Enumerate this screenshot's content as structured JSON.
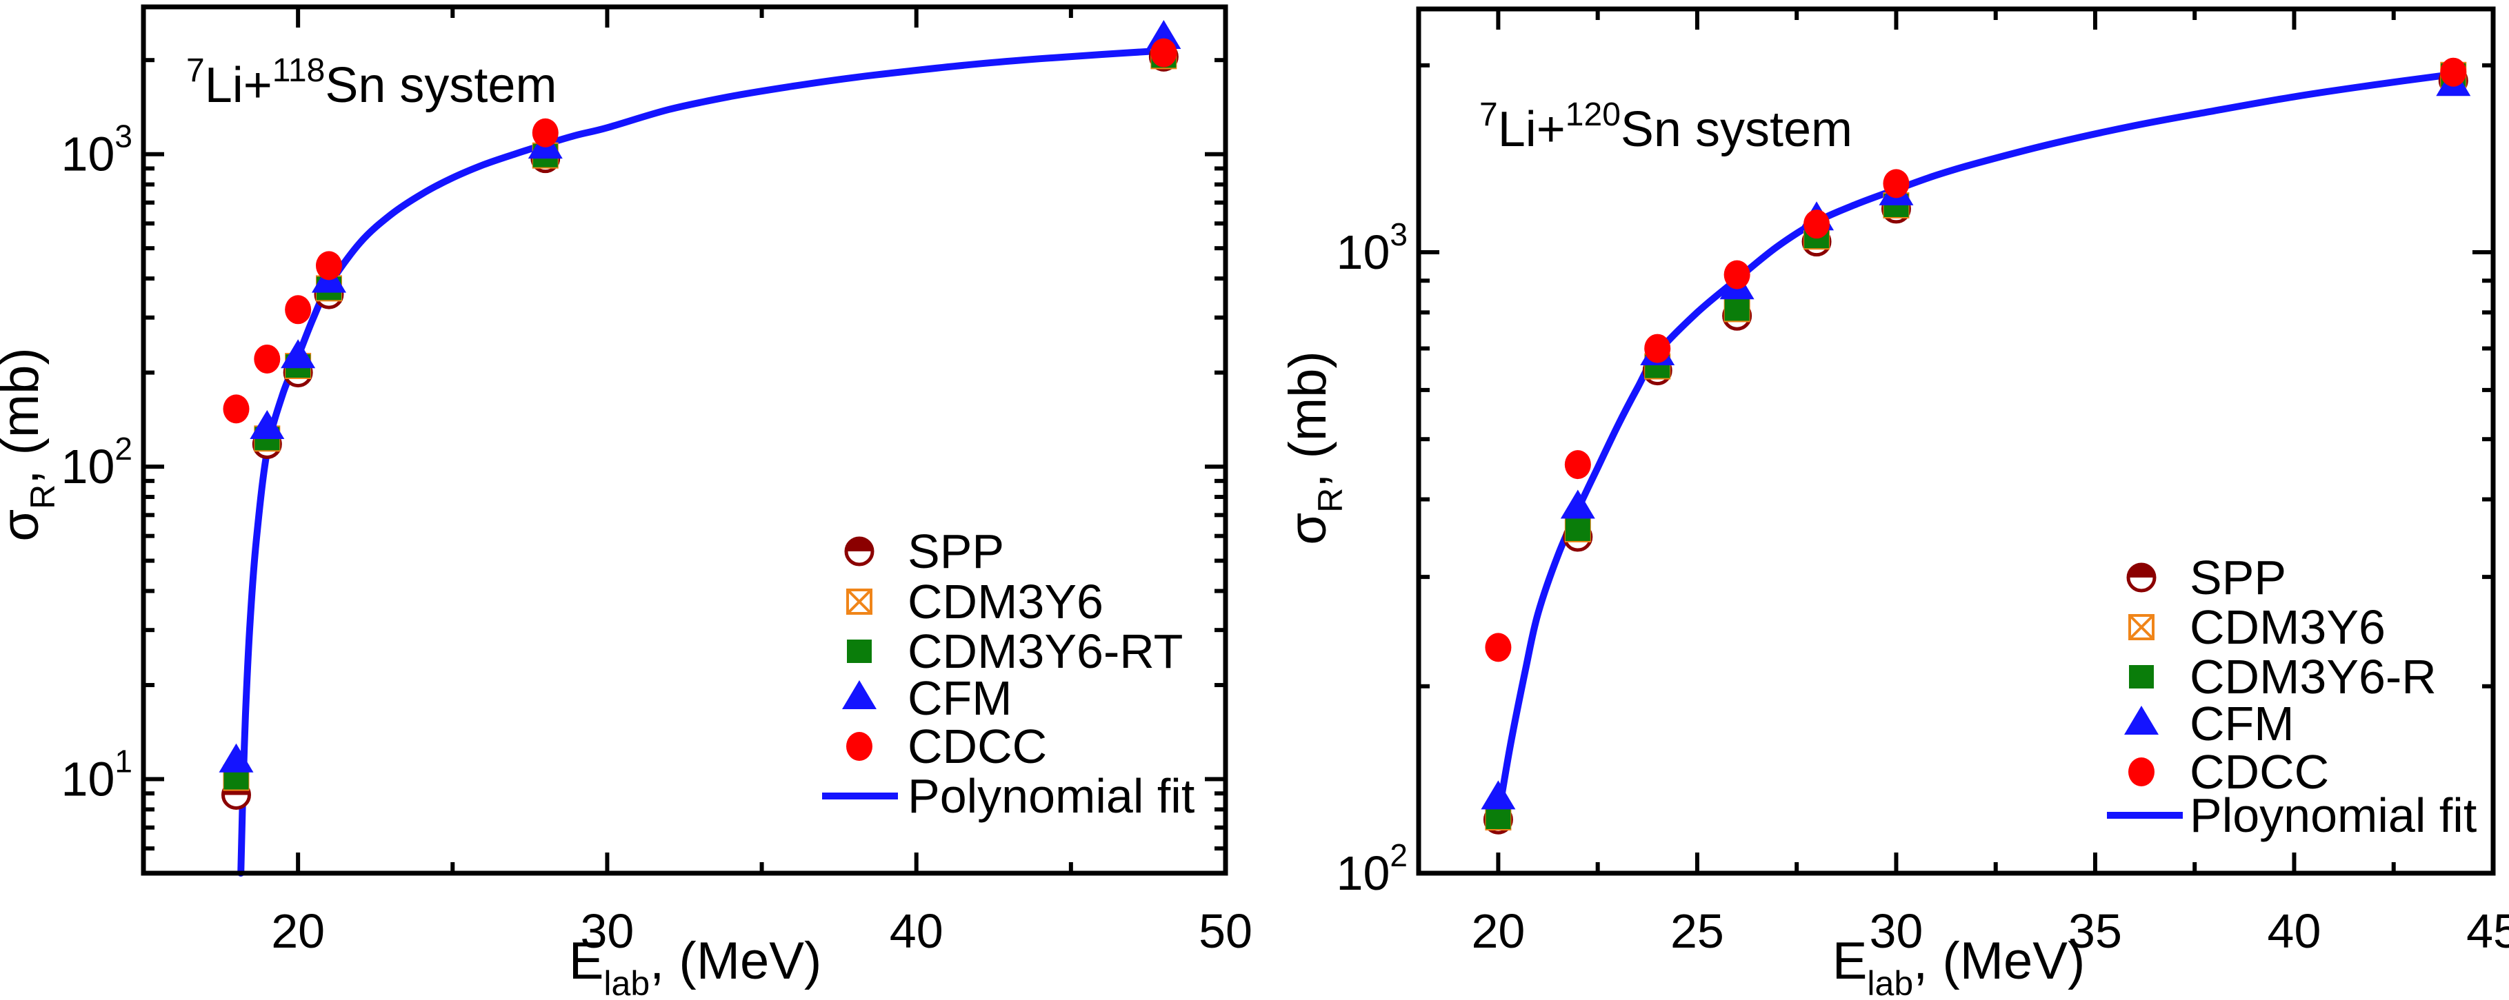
{
  "figure": {
    "background": "#ffffff"
  },
  "chart_data": [
    {
      "id": "li118sn",
      "type": "scatter",
      "title_parts": [
        {
          "t": "7",
          "sup": true
        },
        {
          "t": "Li+"
        },
        {
          "t": "118",
          "sup": true
        },
        {
          "t": "Sn system"
        }
      ],
      "xlabel_parts": [
        {
          "t": "E"
        },
        {
          "t": "lab",
          "sub": true
        },
        {
          "t": ", (MeV)"
        }
      ],
      "ylabel_parts": [
        {
          "t": "σ"
        },
        {
          "t": "R",
          "sub": true
        },
        {
          "t": ", (mb)"
        }
      ],
      "x_axis": {
        "lim": [
          15,
          50
        ],
        "major_ticks": [
          20,
          30,
          40,
          50
        ],
        "minor_ticks": [
          25,
          35,
          45
        ],
        "labels": [
          "20",
          "30",
          "40",
          "50"
        ]
      },
      "y_axis": {
        "scale": "log",
        "lim": [
          5,
          2960
        ],
        "labeled_exponents": [
          1,
          2,
          3
        ]
      },
      "grid": false,
      "legend_position": "lower-right",
      "series": [
        {
          "name": "SPP",
          "marker": "half-circle",
          "color": "#8B0000",
          "x": [
            18,
            19,
            20,
            21,
            28,
            48
          ],
          "y": [
            8.9,
            118,
            200,
            356,
            970,
            2050
          ]
        },
        {
          "name": "CDM3Y6",
          "marker": "square-x",
          "color": "#F08519",
          "x": [
            18,
            19,
            20,
            21,
            28,
            48
          ],
          "y": [
            10.1,
            123,
            210,
            372,
            990,
            2060
          ]
        },
        {
          "name": "CDM3Y6-RT",
          "marker": "square",
          "color": "#0A7D0A",
          "x": [
            18,
            19,
            20,
            21,
            28,
            48
          ],
          "y": [
            10.1,
            123,
            210,
            372,
            990,
            2060
          ]
        },
        {
          "name": "CFM",
          "marker": "triangle",
          "color": "#1414FF",
          "x": [
            18,
            19,
            20,
            21,
            28,
            48
          ],
          "y": [
            11.4,
            133,
            224,
            391,
            1050,
            2355
          ]
        },
        {
          "name": "CDCC",
          "marker": "circle",
          "color": "#FF0000",
          "x": [
            18,
            19,
            20,
            21,
            28,
            48
          ],
          "y": [
            153,
            221,
            318,
            440,
            1170,
            2110
          ]
        }
      ],
      "fit": {
        "label": "Polynomial fit",
        "color": "#1414FF",
        "points": [
          [
            18.15,
            5.0
          ],
          [
            18.2,
            8
          ],
          [
            18.3,
            16
          ],
          [
            18.45,
            32
          ],
          [
            18.65,
            58
          ],
          [
            19.0,
            112
          ],
          [
            19.5,
            170
          ],
          [
            20.0,
            225
          ],
          [
            20.5,
            300
          ],
          [
            21,
            380
          ],
          [
            22,
            520
          ],
          [
            23,
            640
          ],
          [
            24,
            745
          ],
          [
            25,
            840
          ],
          [
            26,
            925
          ],
          [
            27,
            1000
          ],
          [
            28,
            1075
          ],
          [
            29,
            1150
          ],
          [
            30,
            1215
          ],
          [
            32,
            1390
          ],
          [
            34,
            1530
          ],
          [
            36,
            1650
          ],
          [
            38,
            1760
          ],
          [
            40,
            1855
          ],
          [
            42,
            1945
          ],
          [
            44,
            2020
          ],
          [
            46,
            2085
          ],
          [
            48,
            2145
          ]
        ]
      }
    },
    {
      "id": "li120sn",
      "type": "scatter",
      "title_parts": [
        {
          "t": "7",
          "sup": true
        },
        {
          "t": "Li+"
        },
        {
          "t": "120",
          "sup": true
        },
        {
          "t": "Sn system"
        }
      ],
      "xlabel_parts": [
        {
          "t": "E"
        },
        {
          "t": "lab",
          "sub": true
        },
        {
          "t": ", (MeV)"
        }
      ],
      "ylabel_parts": [
        {
          "t": "σ"
        },
        {
          "t": "R",
          "sub": true
        },
        {
          "t": ", (mb)"
        }
      ],
      "x_axis": {
        "lim": [
          18,
          45
        ],
        "major_ticks": [
          20,
          25,
          30,
          35,
          40,
          45
        ],
        "minor_ticks": [
          22.5,
          27.5,
          32.5,
          37.5,
          42.5
        ],
        "labels": [
          "20",
          "25",
          "30",
          "35",
          "40",
          "45"
        ]
      },
      "y_axis": {
        "scale": "log",
        "lim": [
          100,
          2465
        ],
        "labeled_exponents": [
          2,
          3
        ]
      },
      "grid": false,
      "legend_position": "lower-right",
      "series": [
        {
          "name": "SPP",
          "marker": "half-circle",
          "color": "#8B0000",
          "x": [
            20,
            22,
            24,
            26,
            28,
            30,
            44
          ],
          "y": [
            122,
            348,
            645,
            790,
            1040,
            1175,
            1890
          ]
        },
        {
          "name": "CDM3Y6",
          "marker": "square-x",
          "color": "#F08519",
          "x": [
            20,
            22,
            24,
            26,
            28,
            30,
            44
          ],
          "y": [
            123,
            358,
            655,
            810,
            1060,
            1190,
            1930
          ]
        },
        {
          "name": "CDM3Y6-R",
          "marker": "square",
          "color": "#0A7D0A",
          "x": [
            20,
            22,
            24,
            26,
            28,
            30,
            44
          ],
          "y": [
            123,
            358,
            655,
            810,
            1060,
            1190,
            1930
          ]
        },
        {
          "name": "CFM",
          "marker": "triangle",
          "color": "#1414FF",
          "x": [
            20,
            22,
            24,
            26,
            28,
            30,
            44
          ],
          "y": [
            132,
            388,
            685,
            875,
            1130,
            1240,
            1860
          ]
        },
        {
          "name": "CDCC",
          "marker": "circle",
          "color": "#FF0000",
          "x": [
            20,
            22,
            24,
            26,
            28,
            30,
            44
          ],
          "y": [
            231,
            455,
            700,
            920,
            1110,
            1290,
            1950
          ]
        }
      ],
      "fit": {
        "label": "Ploynomial fit",
        "color": "#1414FF",
        "points": [
          [
            19.95,
            118
          ],
          [
            20.3,
            160
          ],
          [
            20.7,
            215
          ],
          [
            21,
            262
          ],
          [
            21.5,
            325
          ],
          [
            22,
            385
          ],
          [
            22.5,
            450
          ],
          [
            23,
            525
          ],
          [
            23.5,
            605
          ],
          [
            24,
            688
          ],
          [
            25,
            800
          ],
          [
            26,
            905
          ],
          [
            27,
            1020
          ],
          [
            28,
            1120
          ],
          [
            29,
            1195
          ],
          [
            30,
            1262
          ],
          [
            31,
            1330
          ],
          [
            32,
            1390
          ],
          [
            34,
            1500
          ],
          [
            36,
            1600
          ],
          [
            38,
            1690
          ],
          [
            40,
            1780
          ],
          [
            42,
            1860
          ],
          [
            44,
            1935
          ]
        ]
      }
    }
  ]
}
